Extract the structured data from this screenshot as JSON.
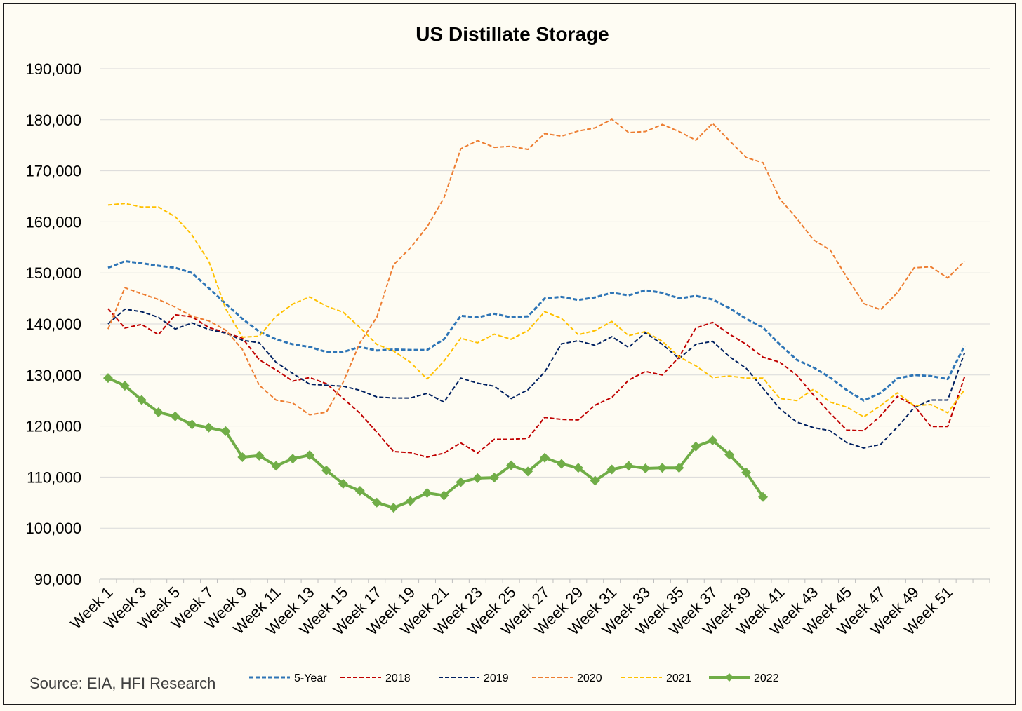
{
  "chart_data": {
    "type": "line",
    "title": "US Distillate Storage",
    "source": "Source: EIA, HFI Research",
    "ylim": [
      90000,
      190000
    ],
    "yticks": [
      "90,000",
      "100,000",
      "110,000",
      "120,000",
      "130,000",
      "140,000",
      "150,000",
      "160,000",
      "170,000",
      "180,000",
      "190,000"
    ],
    "ytick_values": [
      90000,
      100000,
      110000,
      120000,
      130000,
      140000,
      150000,
      160000,
      170000,
      180000,
      190000
    ],
    "x_tick_labels": [
      "Week 1",
      "Week 3",
      "Week 5",
      "Week 7",
      "Week 9",
      "Week 11",
      "Week 13",
      "Week 15",
      "Week 17",
      "Week 19",
      "Week 21",
      "Week 23",
      "Week 25",
      "Week 27",
      "Week 29",
      "Week 31",
      "Week 33",
      "Week 35",
      "Week 37",
      "Week 39",
      "Week 41",
      "Week 43",
      "Week 45",
      "Week 47",
      "Week 49",
      "Week 51"
    ],
    "x_tick_weeks": [
      1,
      3,
      5,
      7,
      9,
      11,
      13,
      15,
      17,
      19,
      21,
      23,
      25,
      27,
      29,
      31,
      33,
      35,
      37,
      39,
      41,
      43,
      45,
      47,
      49,
      51
    ],
    "x_count": 53,
    "grid": true,
    "legend_position": "bottom",
    "series": [
      {
        "name": "5-Year",
        "color": "#2e75b6",
        "dash": true,
        "width": 3,
        "markers": false,
        "values": [
          151000,
          152300,
          151900,
          151400,
          151000,
          150000,
          147000,
          144000,
          141000,
          138500,
          137000,
          136000,
          135500,
          134500,
          134500,
          135500,
          134800,
          135000,
          134900,
          134900,
          137000,
          141600,
          141300,
          142000,
          141300,
          141500,
          145000,
          145300,
          144700,
          145200,
          146100,
          145600,
          146600,
          146100,
          145000,
          145500,
          144800,
          143100,
          141000,
          139300,
          136000,
          133000,
          131500,
          129500,
          127000,
          125000,
          126500,
          129300,
          130000,
          129800,
          129200,
          135700
        ]
      },
      {
        "name": "2018",
        "color": "#c00000",
        "dash": true,
        "width": 2,
        "markers": false,
        "values": [
          143000,
          139200,
          139900,
          137900,
          141800,
          141400,
          139300,
          138300,
          137200,
          133000,
          131000,
          128800,
          129500,
          128300,
          125400,
          122500,
          118800,
          115000,
          114800,
          113900,
          114700,
          116700,
          114700,
          117400,
          117400,
          117600,
          121700,
          121300,
          121200,
          124100,
          125600,
          129000,
          130700,
          130000,
          133500,
          139200,
          140300,
          138000,
          136000,
          133500,
          132500,
          130000,
          126100,
          122500,
          119200,
          119100,
          122000,
          125800,
          124000,
          119900,
          119900,
          129600
        ]
      },
      {
        "name": "2019",
        "color": "#002060",
        "dash": true,
        "width": 2,
        "markers": false,
        "values": [
          140000,
          142900,
          142400,
          141300,
          139000,
          140200,
          138900,
          138200,
          136800,
          136300,
          132500,
          130300,
          128200,
          128000,
          127800,
          127000,
          125700,
          125500,
          125500,
          126400,
          124700,
          129400,
          128400,
          127800,
          125400,
          127100,
          130600,
          136100,
          136700,
          135800,
          137500,
          135400,
          138300,
          136000,
          133200,
          136000,
          136600,
          133600,
          131300,
          127400,
          123400,
          120800,
          119700,
          119100,
          116700,
          115700,
          116400,
          119800,
          123600,
          125100,
          125100,
          134300
        ]
      },
      {
        "name": "2020",
        "color": "#ed7d31",
        "dash": true,
        "width": 2,
        "markers": false,
        "values": [
          139000,
          147100,
          145900,
          144800,
          143300,
          141500,
          140600,
          138800,
          135000,
          128000,
          125100,
          124500,
          122200,
          122700,
          128600,
          136300,
          141300,
          151600,
          154900,
          159000,
          164700,
          174300,
          175900,
          174600,
          174800,
          174200,
          177300,
          176800,
          177800,
          178400,
          180100,
          177500,
          177700,
          179100,
          177700,
          176000,
          179300,
          175900,
          172600,
          171600,
          164500,
          160700,
          156500,
          154500,
          149100,
          144000,
          142800,
          146100,
          151000,
          151200,
          149000,
          152300
        ]
      },
      {
        "name": "2021",
        "color": "#ffc000",
        "dash": true,
        "width": 2,
        "markers": false,
        "values": [
          163300,
          163600,
          162900,
          162900,
          161000,
          157400,
          152300,
          143000,
          137400,
          137600,
          141500,
          143900,
          145300,
          143500,
          142300,
          139300,
          136000,
          134700,
          132500,
          129200,
          132700,
          137200,
          136300,
          138000,
          137000,
          138700,
          142400,
          141100,
          137900,
          138700,
          140500,
          137700,
          138500,
          136600,
          133600,
          131800,
          129500,
          129800,
          129400,
          129400,
          125400,
          125000,
          127200,
          124700,
          123700,
          121800,
          124000,
          126500,
          124000,
          124200,
          122600,
          127100
        ]
      },
      {
        "name": "2022",
        "color": "#70ad47",
        "dash": false,
        "width": 4,
        "markers": true,
        "values": [
          129400,
          127900,
          125100,
          122700,
          121900,
          120300,
          119700,
          119000,
          113900,
          114200,
          112200,
          113600,
          114300,
          111300,
          108700,
          107300,
          105000,
          104000,
          105300,
          106900,
          106400,
          109000,
          109800,
          109900,
          112300,
          111100,
          113800,
          112600,
          111800,
          109300,
          111500,
          112200,
          111700,
          111800,
          111800,
          116000,
          117200,
          114400,
          110900,
          106100
        ]
      }
    ]
  }
}
